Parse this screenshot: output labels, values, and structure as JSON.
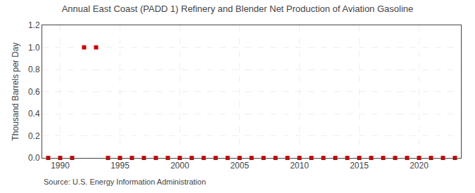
{
  "chart_data": {
    "type": "scatter",
    "title": "Annual East Coast (PADD 1) Refinery and Blender Net Production of Aviation Gasoline",
    "ylabel": "Thousand Barrels per Day",
    "annotations": [
      "Source: U.S. Energy Information Administration"
    ],
    "x": [
      1989,
      1990,
      1991,
      1992,
      1993,
      1994,
      1995,
      1996,
      1997,
      1998,
      1999,
      2000,
      2001,
      2002,
      2003,
      2004,
      2005,
      2006,
      2007,
      2008,
      2009,
      2010,
      2011,
      2012,
      2013,
      2014,
      2015,
      2016,
      2017,
      2018,
      2019,
      2020,
      2021,
      2022,
      2023
    ],
    "values": [
      0.0,
      0.0,
      0.0,
      1.0,
      1.0,
      0.0,
      0.0,
      0.0,
      0.0,
      0.0,
      0.0,
      0.0,
      0.0,
      0.0,
      0.0,
      0.0,
      0.0,
      0.0,
      0.0,
      0.0,
      0.0,
      0.0,
      0.0,
      0.0,
      0.0,
      0.0,
      0.0,
      0.0,
      0.0,
      0.0,
      0.0,
      0.0,
      0.0,
      0.0,
      0.0
    ],
    "color": "#cc0000",
    "marker": "square",
    "xlim": [
      1988.5,
      2023.5
    ],
    "ylim": [
      0.0,
      1.2
    ],
    "xticks": [
      1990,
      1995,
      2000,
      2005,
      2010,
      2015,
      2020
    ],
    "yticks": [
      {
        "value": 0.0,
        "label": "0.0"
      },
      0.2,
      0.4,
      0.6,
      0.8,
      {
        "value": 1.0,
        "label": "1.0"
      },
      1.2
    ],
    "grid": true
  }
}
